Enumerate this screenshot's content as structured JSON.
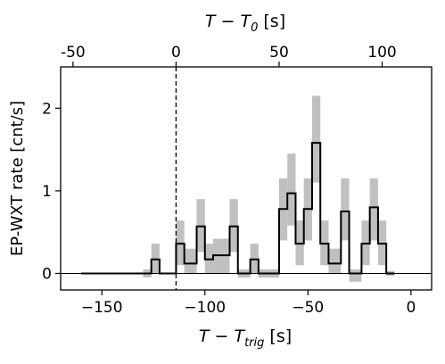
{
  "chart_data": {
    "type": "line",
    "step": true,
    "xlabel": "T − T",
    "xlabel_sub": "trig",
    "xlabel_unit": " [s]",
    "top_xlabel": "T − T",
    "top_xlabel_sub": "0",
    "top_xlabel_unit": " [s]",
    "ylabel": "EP-WXT rate [cnt/s]",
    "xlim": [
      -170,
      10
    ],
    "ylim": [
      -0.2,
      2.5
    ],
    "top_axis_offset": 114,
    "x_ticks": [
      -150,
      -100,
      -50,
      0
    ],
    "x_tick_labels": [
      "−150",
      "−100",
      "−50",
      "0"
    ],
    "top_ticks": [
      -50,
      0,
      50,
      100
    ],
    "top_tick_labels": [
      "-50",
      "0",
      "50",
      "100"
    ],
    "y_ticks": [
      0,
      1,
      2
    ],
    "y_tick_labels": [
      "0",
      "1",
      "2"
    ],
    "vline_x": -114,
    "zero_line": true,
    "series": [
      {
        "bins": [
          {
            "x0": -160,
            "x1": -130,
            "y": 0.0,
            "lo": 0.0,
            "hi": 0.0
          },
          {
            "x0": -130,
            "x1": -126,
            "y": 0.0,
            "lo": -0.05,
            "hi": 0.05
          },
          {
            "x0": -126,
            "x1": -122,
            "y": 0.17,
            "lo": 0.0,
            "hi": 0.36
          },
          {
            "x0": -122,
            "x1": -114,
            "y": 0.0,
            "lo": 0.0,
            "hi": 0.0
          },
          {
            "x0": -114,
            "x1": -110,
            "y": 0.36,
            "lo": 0.1,
            "hi": 0.64
          },
          {
            "x0": -110,
            "x1": -104,
            "y": 0.12,
            "lo": 0.0,
            "hi": 0.3
          },
          {
            "x0": -104,
            "x1": -100,
            "y": 0.57,
            "lo": 0.26,
            "hi": 0.9
          },
          {
            "x0": -100,
            "x1": -96,
            "y": 0.17,
            "lo": 0.0,
            "hi": 0.36
          },
          {
            "x0": -96,
            "x1": -88,
            "y": 0.22,
            "lo": 0.0,
            "hi": 0.42
          },
          {
            "x0": -88,
            "x1": -84,
            "y": 0.57,
            "lo": 0.26,
            "hi": 0.9
          },
          {
            "x0": -84,
            "x1": -78,
            "y": 0.0,
            "lo": -0.05,
            "hi": 0.05
          },
          {
            "x0": -78,
            "x1": -74,
            "y": 0.17,
            "lo": 0.0,
            "hi": 0.36
          },
          {
            "x0": -74,
            "x1": -64,
            "y": 0.0,
            "lo": -0.05,
            "hi": 0.05
          },
          {
            "x0": -64,
            "x1": -60,
            "y": 0.78,
            "lo": 0.4,
            "hi": 1.15
          },
          {
            "x0": -60,
            "x1": -56,
            "y": 0.97,
            "lo": 0.58,
            "hi": 1.45
          },
          {
            "x0": -56,
            "x1": -52,
            "y": 0.36,
            "lo": 0.1,
            "hi": 0.64
          },
          {
            "x0": -52,
            "x1": -48,
            "y": 0.78,
            "lo": 0.4,
            "hi": 1.15
          },
          {
            "x0": -48,
            "x1": -44,
            "y": 1.58,
            "lo": 1.1,
            "hi": 2.15
          },
          {
            "x0": -44,
            "x1": -40,
            "y": 0.36,
            "lo": 0.1,
            "hi": 0.64
          },
          {
            "x0": -40,
            "x1": -34,
            "y": 0.12,
            "lo": 0.0,
            "hi": 0.3
          },
          {
            "x0": -34,
            "x1": -30,
            "y": 0.75,
            "lo": 0.4,
            "hi": 1.15
          },
          {
            "x0": -30,
            "x1": -24,
            "y": 0.0,
            "lo": -0.1,
            "hi": 0.05
          },
          {
            "x0": -24,
            "x1": -20,
            "y": 0.36,
            "lo": 0.1,
            "hi": 0.64
          },
          {
            "x0": -20,
            "x1": -16,
            "y": 0.8,
            "lo": 0.4,
            "hi": 1.15
          },
          {
            "x0": -16,
            "x1": -12,
            "y": 0.36,
            "lo": 0.1,
            "hi": 0.64
          },
          {
            "x0": -12,
            "x1": -8,
            "y": 0.0,
            "lo": -0.03,
            "hi": 0.03
          }
        ]
      }
    ],
    "colors": {
      "step": "#000000",
      "error_band": "#c0c0c0",
      "vline": "#000000"
    }
  }
}
